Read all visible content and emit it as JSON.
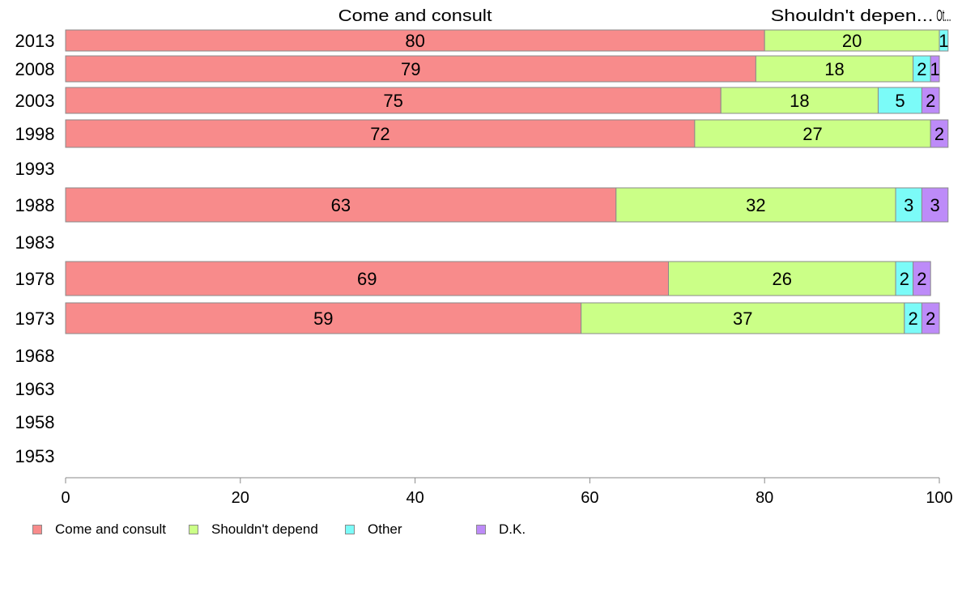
{
  "chart_data": {
    "type": "bar",
    "orientation": "horizontal",
    "stacked": true,
    "categories": [
      "2013",
      "2008",
      "2003",
      "1998",
      "1993",
      "1988",
      "1983",
      "1978",
      "1973",
      "1968",
      "1963",
      "1958",
      "1953"
    ],
    "series": [
      {
        "name": "Come and consult",
        "color": "#f88b8b",
        "values": [
          80,
          79,
          75,
          72,
          null,
          63,
          null,
          69,
          59,
          null,
          null,
          null,
          null
        ]
      },
      {
        "name": "Shouldn't depend",
        "color": "#cbff87",
        "values": [
          20,
          18,
          18,
          27,
          null,
          32,
          null,
          26,
          37,
          null,
          null,
          null,
          null
        ]
      },
      {
        "name": "Other",
        "color": "#7bfbf8",
        "values": [
          1,
          2,
          5,
          0,
          null,
          3,
          null,
          2,
          2,
          null,
          null,
          null,
          null
        ]
      },
      {
        "name": "D.K.",
        "color": "#bd8bf8",
        "values": [
          0,
          1,
          2,
          2,
          null,
          3,
          null,
          2,
          2,
          null,
          null,
          null,
          null
        ]
      }
    ],
    "top_labels": [
      "Come and consult",
      "Shouldn't depen...",
      "Ot..."
    ],
    "xlim": [
      0,
      100
    ],
    "x_ticks": [
      "0",
      "20",
      "40",
      "60",
      "80",
      "100"
    ],
    "grid": false,
    "legend_position": "bottom"
  }
}
